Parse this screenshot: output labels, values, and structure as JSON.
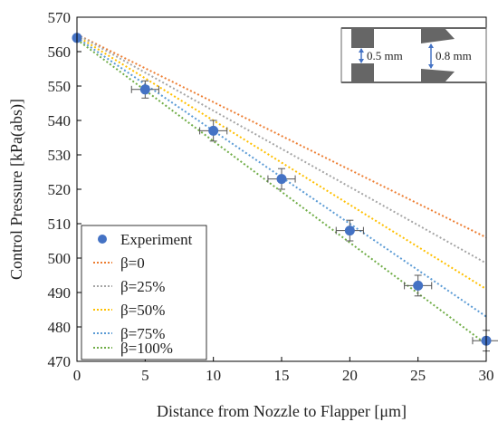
{
  "chart_data": {
    "type": "line",
    "title": "",
    "xlabel": "Distance from Nozzle to Flapper [μm]",
    "ylabel": "Control Pressure [kPa(abs)]",
    "xlim": [
      0,
      30
    ],
    "ylim": [
      470,
      570
    ],
    "xticks": [
      0,
      5,
      10,
      15,
      20,
      25,
      30
    ],
    "yticks": [
      470,
      480,
      490,
      500,
      510,
      520,
      530,
      540,
      550,
      560,
      570
    ],
    "grid": false,
    "legend_position": "bottom-left",
    "experiment": {
      "name": "Experiment",
      "color": "#4472C4",
      "x": [
        0,
        5,
        10,
        15,
        20,
        25,
        30
      ],
      "y": [
        564,
        549,
        537,
        523,
        508,
        492,
        476
      ],
      "x_error": [
        0,
        1,
        1,
        1,
        1,
        1,
        1
      ],
      "y_error": [
        0,
        2.5,
        3,
        3,
        3,
        3,
        3
      ]
    },
    "series": [
      {
        "name": "β=0",
        "color": "#ED7D31",
        "x": [
          0,
          30
        ],
        "y": [
          565,
          506
        ]
      },
      {
        "name": "β=25%",
        "color": "#A5A5A5",
        "x": [
          0,
          30
        ],
        "y": [
          565,
          498.5
        ]
      },
      {
        "name": "β=50%",
        "color": "#FFC000",
        "x": [
          0,
          30
        ],
        "y": [
          564.5,
          491
        ]
      },
      {
        "name": "β=75%",
        "color": "#5B9BD5",
        "x": [
          0,
          30
        ],
        "y": [
          564,
          483
        ]
      },
      {
        "name": "β=100%",
        "color": "#70AD47",
        "x": [
          0,
          30
        ],
        "y": [
          563.5,
          475
        ]
      }
    ]
  },
  "inset": {
    "label_left": "0.5 mm",
    "label_right": "0.8 mm"
  }
}
